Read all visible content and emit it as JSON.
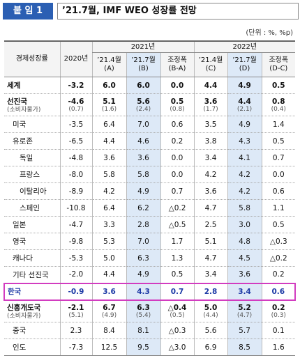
{
  "header": {
    "badge": "붙 임 1",
    "title": "’21.7월, IMF WEO 성장률 전망"
  },
  "unit": "(단위 : %, %p)",
  "table": {
    "columns": {
      "label": "경제성장률",
      "base": "2020년",
      "groups": [
        {
          "title": "2021년",
          "cols": [
            {
              "period": "’21.4월",
              "code": "(A)"
            },
            {
              "period": "’21.7월",
              "code": "(B)"
            },
            {
              "period": "조정폭",
              "code": "(B-A)"
            }
          ]
        },
        {
          "title": "2022년",
          "cols": [
            {
              "period": "’21.4월",
              "code": "(C)"
            },
            {
              "period": "’21.7월",
              "code": "(D)"
            },
            {
              "period": "조정폭",
              "code": "(D-C)"
            }
          ]
        }
      ]
    },
    "rows": [
      {
        "label": "세계",
        "values": [
          "-3.2",
          "6.0",
          "6.0",
          "0.0",
          "4.4",
          "4.9",
          "0.5"
        ]
      },
      {
        "label": "선진국",
        "sublabel": "(소비자물가)",
        "values": [
          "-4.6",
          "5.1",
          "5.6",
          "0.5",
          "3.6",
          "4.4",
          "0.8"
        ],
        "subvalues": [
          "(0.7)",
          "(1.6)",
          "(2.4)",
          "(0.8)",
          "(1.7)",
          "(2.1)",
          "(0.4)"
        ]
      },
      {
        "label": "미국",
        "values": [
          "-3.5",
          "6.4",
          "7.0",
          "0.6",
          "3.5",
          "4.9",
          "1.4"
        ]
      },
      {
        "label": "유로존",
        "values": [
          "-6.5",
          "4.4",
          "4.6",
          "0.2",
          "3.8",
          "4.3",
          "0.5"
        ]
      },
      {
        "label": "독일",
        "values": [
          "-4.8",
          "3.6",
          "3.6",
          "0.0",
          "3.4",
          "4.1",
          "0.7"
        ]
      },
      {
        "label": "프랑스",
        "values": [
          "-8.0",
          "5.8",
          "5.8",
          "0.0",
          "4.2",
          "4.2",
          "0.0"
        ]
      },
      {
        "label": "이탈리아",
        "values": [
          "-8.9",
          "4.2",
          "4.9",
          "0.7",
          "3.6",
          "4.2",
          "0.6"
        ]
      },
      {
        "label": "스페인",
        "values": [
          "-10.8",
          "6.4",
          "6.2",
          "△0.2",
          "4.7",
          "5.8",
          "1.1"
        ]
      },
      {
        "label": "일본",
        "values": [
          "-4.7",
          "3.3",
          "2.8",
          "△0.5",
          "2.5",
          "3.0",
          "0.5"
        ]
      },
      {
        "label": "영국",
        "values": [
          "-9.8",
          "5.3",
          "7.0",
          "1.7",
          "5.1",
          "4.8",
          "△0.3"
        ]
      },
      {
        "label": "캐나다",
        "values": [
          "-5.3",
          "5.0",
          "6.3",
          "1.3",
          "4.7",
          "4.5",
          "△0.2"
        ]
      },
      {
        "label": "기타 선진국",
        "values": [
          "-2.0",
          "4.4",
          "4.9",
          "0.5",
          "3.4",
          "3.6",
          "0.2"
        ]
      },
      {
        "label": "한국",
        "values": [
          "-0.9",
          "3.6",
          "4.3",
          "0.7",
          "2.8",
          "3.4",
          "0.6"
        ]
      },
      {
        "label": "신흥개도국",
        "sublabel": "(소비자물가)",
        "values": [
          "-2.1",
          "6.7",
          "6.3",
          "△0.4",
          "5.0",
          "5.2",
          "0.2"
        ],
        "subvalues": [
          "(5.1)",
          "(4.9)",
          "(5.4)",
          "(0.5)",
          "(4.4)",
          "(4.7)",
          "(0.3)"
        ]
      },
      {
        "label": "중국",
        "values": [
          "2.3",
          "8.4",
          "8.1",
          "△0.3",
          "5.6",
          "5.7",
          "0.1"
        ]
      },
      {
        "label": "인도",
        "values": [
          "-7.3",
          "12.5",
          "9.5",
          "△3.0",
          "6.9",
          "8.5",
          "1.6"
        ]
      }
    ]
  }
}
